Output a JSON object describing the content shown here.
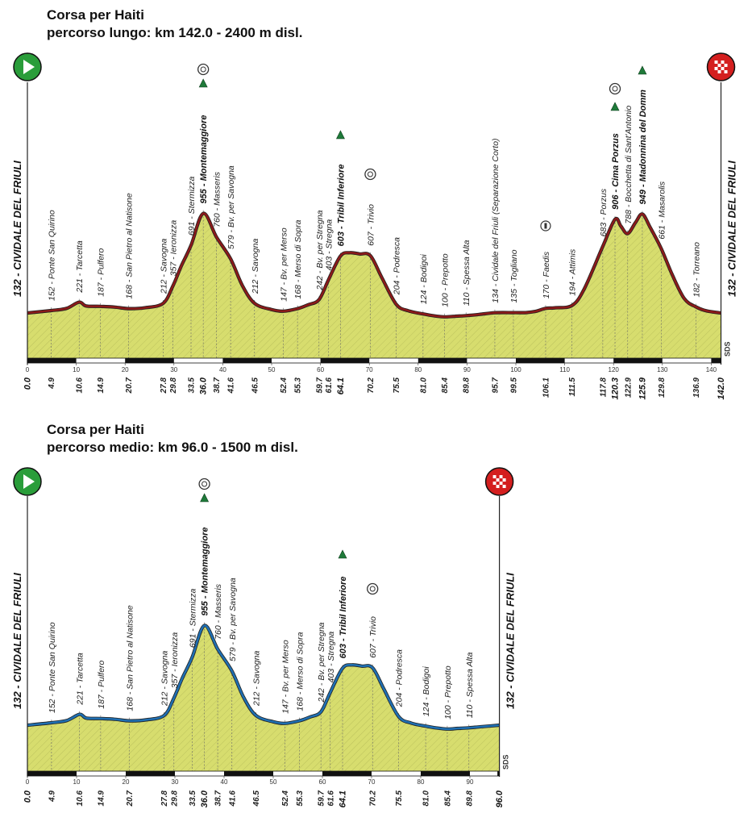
{
  "chart_data": [
    {
      "type": "area",
      "title": "Corsa per Haiti",
      "subtitle": "percorso lungo: km 142.0 - 2400 m disl.",
      "xlim": [
        0,
        142
      ],
      "ylim": [
        0,
        1000
      ],
      "x_ticks": [
        0,
        10,
        20,
        30,
        40,
        50,
        60,
        70,
        80,
        90,
        100,
        110,
        120,
        130,
        140
      ],
      "start_label": "132 - CIVIDALE DEL FRIULI",
      "finish_label": "132 - CIVIDALE DEL FRIULI",
      "line_color": "#8b1a1a",
      "fill_color": "#d7dd6e",
      "credit": "SDS",
      "profile": [
        [
          0,
          132
        ],
        [
          4.9,
          152
        ],
        [
          8,
          170
        ],
        [
          10.6,
          221
        ],
        [
          12,
          190
        ],
        [
          14.9,
          187
        ],
        [
          18,
          180
        ],
        [
          20.7,
          168
        ],
        [
          24,
          175
        ],
        [
          27.8,
          212
        ],
        [
          29.8,
          357
        ],
        [
          31.5,
          520
        ],
        [
          33.5,
          691
        ],
        [
          36.0,
          955
        ],
        [
          38.7,
          760
        ],
        [
          41.6,
          579
        ],
        [
          44,
          360
        ],
        [
          46.5,
          212
        ],
        [
          50,
          160
        ],
        [
          52.4,
          147
        ],
        [
          55.3,
          168
        ],
        [
          57.5,
          200
        ],
        [
          59.7,
          242
        ],
        [
          61.6,
          403
        ],
        [
          64.1,
          603
        ],
        [
          66,
          630
        ],
        [
          68,
          620
        ],
        [
          70.2,
          607
        ],
        [
          72.5,
          430
        ],
        [
          75.5,
          204
        ],
        [
          78,
          150
        ],
        [
          81.0,
          124
        ],
        [
          83,
          110
        ],
        [
          85.4,
          100
        ],
        [
          87.5,
          105
        ],
        [
          89.8,
          110
        ],
        [
          92.5,
          120
        ],
        [
          95.7,
          134
        ],
        [
          99.5,
          135
        ],
        [
          102,
          135
        ],
        [
          104,
          145
        ],
        [
          106.1,
          170
        ],
        [
          108,
          175
        ],
        [
          111.5,
          194
        ],
        [
          114,
          330
        ],
        [
          117.8,
          683
        ],
        [
          120.3,
          906
        ],
        [
          121.5,
          850
        ],
        [
          122.9,
          788
        ],
        [
          124.5,
          880
        ],
        [
          125.9,
          949
        ],
        [
          127.5,
          840
        ],
        [
          129.8,
          661
        ],
        [
          132,
          450
        ],
        [
          134.5,
          250
        ],
        [
          136.9,
          182
        ],
        [
          139,
          150
        ],
        [
          142.0,
          132
        ]
      ],
      "points": [
        {
          "km": "4.9",
          "label": "152 - Ponte San Quirino",
          "x": 4.9,
          "y": 152
        },
        {
          "km": "10.6",
          "label": "221 - Tarcetta",
          "x": 10.6,
          "y": 221
        },
        {
          "km": "14.9",
          "label": "187 - Pulfero",
          "x": 14.9,
          "y": 187
        },
        {
          "km": "20.7",
          "label": "168 - San Pietro al Natisone",
          "x": 20.7,
          "y": 168
        },
        {
          "km": "27.8",
          "label": "212 - Savogna",
          "x": 27.8,
          "y": 212
        },
        {
          "km": "29.8",
          "label": "357 - Ieronizza",
          "x": 29.8,
          "y": 357
        },
        {
          "km": "33.5",
          "label": "691 - Stermizza",
          "x": 33.5,
          "y": 691
        },
        {
          "km": "36.0",
          "label": "955 - Montemaggiore",
          "x": 36.0,
          "y": 955,
          "bold": true
        },
        {
          "km": "38.7",
          "label": "760 - Masseris",
          "x": 38.7,
          "y": 760
        },
        {
          "km": "41.6",
          "label": "579 - Bv. per Savogna",
          "x": 41.6,
          "y": 579
        },
        {
          "km": "46.5",
          "label": "212 - Savogna",
          "x": 46.5,
          "y": 212
        },
        {
          "km": "52.4",
          "label": "147 - Bv. per Merso",
          "x": 52.4,
          "y": 147
        },
        {
          "km": "55.3",
          "label": "168 - Merso di Sopra",
          "x": 55.3,
          "y": 168
        },
        {
          "km": "59.7",
          "label": "242 - Bv. per Stregna",
          "x": 59.7,
          "y": 242
        },
        {
          "km": "61.6",
          "label": "403 - Stregna",
          "x": 61.6,
          "y": 403
        },
        {
          "km": "64.1",
          "label": "603 - Tribil Inferiore",
          "x": 64.1,
          "y": 603,
          "bold": true
        },
        {
          "km": "70.2",
          "label": "607 - Trivio",
          "x": 70.2,
          "y": 607
        },
        {
          "km": "75.5",
          "label": "204 - Podresca",
          "x": 75.5,
          "y": 204
        },
        {
          "km": "81.0",
          "label": "124 - Bodigoi",
          "x": 81.0,
          "y": 124
        },
        {
          "km": "85.4",
          "label": "100 - Prepotto",
          "x": 85.4,
          "y": 100
        },
        {
          "km": "89.8",
          "label": "110 - Spessa Alta",
          "x": 89.8,
          "y": 110
        },
        {
          "km": "95.7",
          "label": "134 - Cividale del Friuli (Separazione Corto)",
          "x": 95.7,
          "y": 134
        },
        {
          "km": "99.5",
          "label": "135 - Togliano",
          "x": 99.5,
          "y": 135
        },
        {
          "km": "106.1",
          "label": "170 - Faedis",
          "x": 106.1,
          "y": 170
        },
        {
          "km": "111.5",
          "label": "194 - Attimis",
          "x": 111.5,
          "y": 194
        },
        {
          "km": "117.8",
          "label": "683 - Porzus",
          "x": 117.8,
          "y": 683
        },
        {
          "km": "120.3",
          "label": "906 - Cima Porzus",
          "x": 120.3,
          "y": 906,
          "bold": true
        },
        {
          "km": "122.9",
          "label": "788 - Bocchetta di Sant'Antonio",
          "x": 122.9,
          "y": 788
        },
        {
          "km": "125.9",
          "label": "949 - Madonnina del Domm",
          "x": 125.9,
          "y": 949,
          "bold": true
        },
        {
          "km": "129.8",
          "label": "661 - Masarolis",
          "x": 129.8,
          "y": 661
        },
        {
          "km": "136.9",
          "label": "182 - Torreano",
          "x": 136.9,
          "y": 182
        }
      ],
      "km_start": "0.0",
      "km_end": "142.0",
      "climbs": [
        36.0,
        64.1,
        120.3,
        125.9
      ],
      "food_stations": [
        36.0,
        70.2,
        120.3
      ],
      "water_stations": [
        106.1
      ]
    },
    {
      "type": "area",
      "title": "Corsa per Haiti",
      "subtitle": "percorso medio: km 96.0 - 1500 m disl.",
      "xlim": [
        0,
        96
      ],
      "ylim": [
        0,
        1000
      ],
      "x_ticks": [
        0,
        10,
        20,
        30,
        40,
        50,
        60,
        70,
        80,
        90
      ],
      "start_label": "132 - CIVIDALE DEL FRIULI",
      "finish_label": "132 - CIVIDALE DEL FRIULI",
      "line_color": "#1f6fb2",
      "fill_color": "#d7dd6e",
      "credit": "SDS",
      "profile": [
        [
          0,
          132
        ],
        [
          4.9,
          152
        ],
        [
          8,
          170
        ],
        [
          10.6,
          221
        ],
        [
          12,
          190
        ],
        [
          14.9,
          187
        ],
        [
          18,
          180
        ],
        [
          20.7,
          168
        ],
        [
          24,
          175
        ],
        [
          27.8,
          212
        ],
        [
          29.8,
          357
        ],
        [
          31.5,
          520
        ],
        [
          33.5,
          691
        ],
        [
          36.0,
          955
        ],
        [
          38.7,
          760
        ],
        [
          41.6,
          579
        ],
        [
          44,
          360
        ],
        [
          46.5,
          212
        ],
        [
          50,
          160
        ],
        [
          52.4,
          147
        ],
        [
          55.3,
          168
        ],
        [
          57.5,
          200
        ],
        [
          59.7,
          242
        ],
        [
          61.6,
          403
        ],
        [
          64.1,
          603
        ],
        [
          66,
          630
        ],
        [
          68,
          620
        ],
        [
          70.2,
          607
        ],
        [
          72.5,
          430
        ],
        [
          75.5,
          204
        ],
        [
          78,
          150
        ],
        [
          81.0,
          124
        ],
        [
          83,
          110
        ],
        [
          85.4,
          100
        ],
        [
          87.5,
          105
        ],
        [
          89.8,
          110
        ],
        [
          92.5,
          120
        ],
        [
          96.0,
          132
        ]
      ],
      "points": [
        {
          "km": "4.9",
          "label": "152 - Ponte San Quirino",
          "x": 4.9,
          "y": 152
        },
        {
          "km": "10.6",
          "label": "221 - Tarcetta",
          "x": 10.6,
          "y": 221
        },
        {
          "km": "14.9",
          "label": "187 - Pulfero",
          "x": 14.9,
          "y": 187
        },
        {
          "km": "20.7",
          "label": "168 - San Pietro al Natisone",
          "x": 20.7,
          "y": 168
        },
        {
          "km": "27.8",
          "label": "212 - Savogna",
          "x": 27.8,
          "y": 212
        },
        {
          "km": "29.8",
          "label": "357 - Ieronizza",
          "x": 29.8,
          "y": 357
        },
        {
          "km": "33.5",
          "label": "691 - Stermizza",
          "x": 33.5,
          "y": 691
        },
        {
          "km": "36.0",
          "label": "955 - Montemaggiore",
          "x": 36.0,
          "y": 955,
          "bold": true
        },
        {
          "km": "38.7",
          "label": "760 - Masseris",
          "x": 38.7,
          "y": 760
        },
        {
          "km": "41.6",
          "label": "579 - Bv. per Savogna",
          "x": 41.6,
          "y": 579
        },
        {
          "km": "46.5",
          "label": "212 - Savogna",
          "x": 46.5,
          "y": 212
        },
        {
          "km": "52.4",
          "label": "147 - Bv. per Merso",
          "x": 52.4,
          "y": 147
        },
        {
          "km": "55.3",
          "label": "168 - Merso di Sopra",
          "x": 55.3,
          "y": 168
        },
        {
          "km": "59.7",
          "label": "242 - Bv. per Stregna",
          "x": 59.7,
          "y": 242
        },
        {
          "km": "61.6",
          "label": "403 - Stregna",
          "x": 61.6,
          "y": 403
        },
        {
          "km": "64.1",
          "label": "603 - Tribil Inferiore",
          "x": 64.1,
          "y": 603,
          "bold": true
        },
        {
          "km": "70.2",
          "label": "607 - Trivio",
          "x": 70.2,
          "y": 607
        },
        {
          "km": "75.5",
          "label": "204 - Podresca",
          "x": 75.5,
          "y": 204
        },
        {
          "km": "81.0",
          "label": "124 - Bodigoi",
          "x": 81.0,
          "y": 124
        },
        {
          "km": "85.4",
          "label": "100 - Prepotto",
          "x": 85.4,
          "y": 100
        },
        {
          "km": "89.8",
          "label": "110 - Spessa Alta",
          "x": 89.8,
          "y": 110
        }
      ],
      "km_start": "0.0",
      "km_end": "96.0",
      "climbs": [
        36.0,
        64.1
      ],
      "food_stations": [
        36.0,
        70.2
      ],
      "water_stations": []
    }
  ],
  "icons": {
    "start": "play-icon",
    "finish": "checkered-flag-icon",
    "climb": "gpm-triangle-icon",
    "food": "food-station-icon",
    "water": "water-station-icon"
  },
  "colors": {
    "start_flag": "#2a9d3a",
    "finish_flag": "#d41f1f",
    "climb_marker": "#1f7a3a"
  }
}
